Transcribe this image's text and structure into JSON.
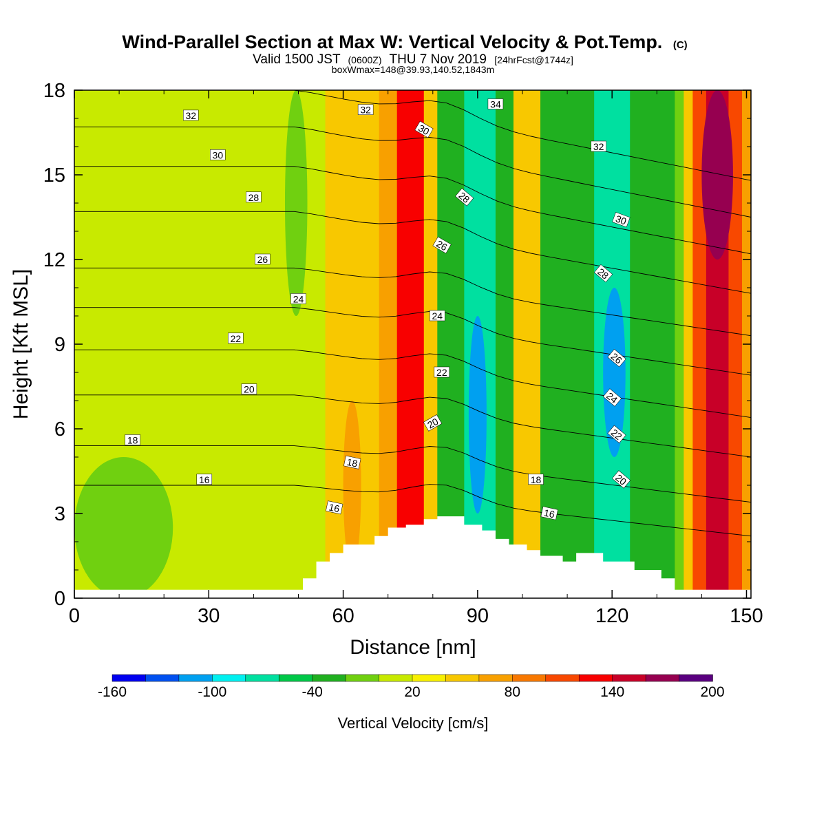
{
  "chart_data": {
    "type": "heatmap",
    "title": "Wind-Parallel Section at Max W: Vertical Velocity & Pot.Temp.",
    "title_mark": "(C)",
    "subtitle_parts": [
      "Valid 1500 JST",
      "(0600Z)",
      "THU 7 Nov 2019",
      "[24hrFcst@1744z]"
    ],
    "subtitle2": "boxWmax=148@39.93,140.52,1843m",
    "xlabel": "Distance [nm]",
    "ylabel": "Height [Kft MSL]",
    "xlim": [
      0,
      151
    ],
    "ylim": [
      0,
      18
    ],
    "x_ticks": [
      "0",
      "30",
      "60",
      "90",
      "120",
      "150"
    ],
    "y_ticks": [
      "0",
      "3",
      "6",
      "9",
      "12",
      "15",
      "18"
    ],
    "colorbar": {
      "label": "Vertical Velocity [cm/s]",
      "min": -160,
      "max": 200,
      "tick_labels": [
        "-160",
        "-100",
        "-40",
        "20",
        "80",
        "140",
        "200"
      ],
      "colors": [
        "#0000f0",
        "#0050f0",
        "#00a0f0",
        "#00f0f0",
        "#00e0a0",
        "#00c848",
        "#20b020",
        "#70d010",
        "#c8ea00",
        "#f8f000",
        "#f8c800",
        "#f8a000",
        "#f87800",
        "#f84800",
        "#f80000",
        "#c80028",
        "#960050",
        "#5a0080"
      ]
    },
    "bands": [
      {
        "x_start": 0,
        "x_end": 47,
        "w": 5
      },
      {
        "x_start": 47,
        "x_end": 56,
        "w": 15
      },
      {
        "x_start": 56,
        "x_end": 68,
        "w": 45
      },
      {
        "x_start": 68,
        "x_end": 72,
        "w": 70
      },
      {
        "x_start": 72,
        "x_end": 78,
        "w": 120
      },
      {
        "x_start": 78,
        "x_end": 81,
        "w": 45
      },
      {
        "x_start": 81,
        "x_end": 87,
        "w": -40
      },
      {
        "x_start": 87,
        "x_end": 94,
        "w": -80
      },
      {
        "x_start": 94,
        "x_end": 98,
        "w": -40
      },
      {
        "x_start": 98,
        "x_end": 104,
        "w": 40
      },
      {
        "x_start": 104,
        "x_end": 110,
        "w": -40
      },
      {
        "x_start": 110,
        "x_end": 116,
        "w": -30
      },
      {
        "x_start": 116,
        "x_end": 124,
        "w": -70
      },
      {
        "x_start": 124,
        "x_end": 134,
        "w": -40
      },
      {
        "x_start": 134,
        "x_end": 136,
        "w": -10
      },
      {
        "x_start": 136,
        "x_end": 138,
        "w": 40
      },
      {
        "x_start": 138,
        "x_end": 141,
        "w": 110
      },
      {
        "x_start": 141,
        "x_end": 146,
        "w": 150
      },
      {
        "x_start": 146,
        "x_end": 149,
        "w": 100
      },
      {
        "x_start": 149,
        "x_end": 151,
        "w": 60
      }
    ],
    "patches": [
      {
        "x_range": [
          47,
          52
        ],
        "y_range": [
          10,
          18
        ],
        "w": -15
      },
      {
        "x_range": [
          0,
          22
        ],
        "y_range": [
          0,
          5
        ],
        "w": -15
      },
      {
        "x_range": [
          140,
          147
        ],
        "y_range": [
          12,
          18
        ],
        "w": 175
      },
      {
        "x_range": [
          60,
          64
        ],
        "y_range": [
          1,
          7
        ],
        "w": 70
      },
      {
        "x_range": [
          88,
          92
        ],
        "y_range": [
          3,
          10
        ],
        "w": -105
      },
      {
        "x_range": [
          118,
          123
        ],
        "y_range": [
          5,
          11
        ],
        "w": -105
      }
    ],
    "terrain": [
      [
        0,
        0.3
      ],
      [
        51,
        0.3
      ],
      [
        51,
        0.7
      ],
      [
        54,
        0.7
      ],
      [
        54,
        1.3
      ],
      [
        57,
        1.3
      ],
      [
        57,
        1.6
      ],
      [
        60,
        1.6
      ],
      [
        60,
        1.9
      ],
      [
        67,
        1.9
      ],
      [
        67,
        2.2
      ],
      [
        70,
        2.2
      ],
      [
        70,
        2.5
      ],
      [
        74,
        2.5
      ],
      [
        74,
        2.6
      ],
      [
        78,
        2.6
      ],
      [
        78,
        2.8
      ],
      [
        81,
        2.8
      ],
      [
        81,
        2.9
      ],
      [
        87,
        2.9
      ],
      [
        87,
        2.6
      ],
      [
        91,
        2.6
      ],
      [
        91,
        2.4
      ],
      [
        94,
        2.4
      ],
      [
        94,
        2.1
      ],
      [
        97,
        2.1
      ],
      [
        97,
        1.9
      ],
      [
        101,
        1.9
      ],
      [
        101,
        1.7
      ],
      [
        104,
        1.7
      ],
      [
        104,
        1.5
      ],
      [
        109,
        1.5
      ],
      [
        109,
        1.3
      ],
      [
        112,
        1.3
      ],
      [
        112,
        1.6
      ],
      [
        118,
        1.6
      ],
      [
        118,
        1.3
      ],
      [
        125,
        1.3
      ],
      [
        125,
        1.0
      ],
      [
        131,
        1.0
      ],
      [
        131,
        0.7
      ],
      [
        134,
        0.7
      ],
      [
        134,
        0.3
      ],
      [
        151,
        0.3
      ]
    ],
    "theta_lines": [
      {
        "value": 16,
        "y_left": 4.0,
        "y_right": 2.2,
        "label": "16",
        "label_positions": [
          [
            29,
            4.2,
            0
          ],
          [
            58,
            3.2,
            12
          ],
          [
            106,
            3.0,
            12
          ]
        ]
      },
      {
        "value": 18,
        "y_left": 5.4,
        "y_right": 3.4,
        "label": "18",
        "label_positions": [
          [
            13,
            5.6,
            0
          ],
          [
            62,
            4.8,
            12
          ],
          [
            103,
            4.2,
            0
          ]
        ]
      },
      {
        "value": 20,
        "y_left": 7.2,
        "y_right": 5.0,
        "label": "20",
        "label_positions": [
          [
            39,
            7.4,
            0
          ],
          [
            80,
            6.2,
            -30
          ],
          [
            122,
            4.2,
            40
          ]
        ]
      },
      {
        "value": 22,
        "y_left": 8.8,
        "y_right": 6.4,
        "label": "22",
        "label_positions": [
          [
            36,
            9.2,
            0
          ],
          [
            82,
            8.0,
            0
          ],
          [
            121,
            5.8,
            40
          ]
        ]
      },
      {
        "value": 24,
        "y_left": 10.3,
        "y_right": 7.9,
        "label": "24",
        "label_positions": [
          [
            50,
            10.6,
            0
          ],
          [
            81,
            10.0,
            0
          ],
          [
            120,
            7.1,
            40
          ]
        ]
      },
      {
        "value": 26,
        "y_left": 11.7,
        "y_right": 9.3,
        "label": "26",
        "label_positions": [
          [
            42,
            12.0,
            0
          ],
          [
            82,
            12.5,
            30
          ],
          [
            121,
            8.5,
            40
          ]
        ]
      },
      {
        "value": 28,
        "y_left": 13.7,
        "y_right": 10.8,
        "label": "28",
        "label_positions": [
          [
            40,
            14.2,
            0
          ],
          [
            87,
            14.2,
            40
          ],
          [
            118,
            11.5,
            40
          ]
        ]
      },
      {
        "value": 30,
        "y_left": 15.3,
        "y_right": 12.2,
        "label": "30",
        "label_positions": [
          [
            32,
            15.7,
            0
          ],
          [
            78,
            16.6,
            30
          ],
          [
            122,
            13.4,
            20
          ]
        ]
      },
      {
        "value": 32,
        "y_left": 16.7,
        "y_right": 13.5,
        "label": "32",
        "label_positions": [
          [
            26,
            17.1,
            0
          ],
          [
            65,
            17.3,
            0
          ],
          [
            117,
            16.0,
            0
          ]
        ]
      },
      {
        "value": 34,
        "y_left": 18.0,
        "y_right": 14.8,
        "label": "34",
        "label_positions": [
          [
            94,
            17.5,
            0
          ]
        ]
      }
    ]
  }
}
